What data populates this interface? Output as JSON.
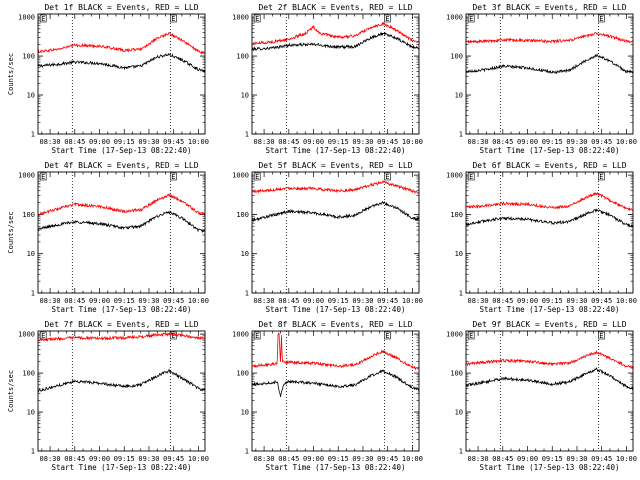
{
  "chart_data": [
    {
      "type": "line",
      "title": "Det 1f BLACK = Events, RED = LLD",
      "ylabel": "Counts/sec",
      "xlabel": "Start Time (17-Sep-13 08:22:40)",
      "x_ticks": [
        "08:30",
        "08:45",
        "09:00",
        "09:15",
        "09:30",
        "09:45",
        "10:00"
      ],
      "y_ticks": [
        "1",
        "10",
        "100",
        "1000"
      ],
      "xlim": [
        "08:22:40",
        "10:04:00"
      ],
      "ylim": [
        1,
        1200
      ],
      "y_scale": "log",
      "event_marks": [
        "08:43:30",
        "09:43:00"
      ],
      "flag_labels": [
        {
          "text": "E",
          "x": "08:24:00"
        },
        {
          "text": "E",
          "x": "09:43:00"
        }
      ],
      "series": [
        {
          "color": "#000000",
          "x": [
            "08:22:40",
            "08:35",
            "08:45",
            "09:00",
            "09:15",
            "09:25",
            "09:35",
            "09:42",
            "09:50",
            "10:00",
            "10:04"
          ],
          "values": [
            55,
            62,
            70,
            65,
            50,
            55,
            95,
            110,
            80,
            45,
            40
          ]
        },
        {
          "color": "#ff0000",
          "x": [
            "08:22:40",
            "08:35",
            "08:45",
            "09:00",
            "09:15",
            "09:25",
            "09:35",
            "09:42",
            "09:50",
            "10:00",
            "10:04"
          ],
          "values": [
            130,
            150,
            190,
            180,
            140,
            150,
            280,
            380,
            260,
            130,
            120
          ]
        }
      ]
    },
    {
      "type": "line",
      "title": "Det 2f BLACK = Events, RED = LLD",
      "ylabel": "",
      "xlabel": "Start Time (17-Sep-13 08:22:40)",
      "x_ticks": [
        "08:30",
        "08:45",
        "09:00",
        "09:15",
        "09:30",
        "09:45",
        "10:00"
      ],
      "y_ticks": [
        "1",
        "10",
        "100",
        "1000"
      ],
      "xlim": [
        "08:22:40",
        "10:04:00"
      ],
      "ylim": [
        1,
        1200
      ],
      "y_scale": "log",
      "event_marks": [
        "08:43:30",
        "09:43:00",
        "10:00:00"
      ],
      "flag_labels": [
        {
          "text": "E",
          "x": "08:24:00"
        },
        {
          "text": "E",
          "x": "09:43:00"
        }
      ],
      "series": [
        {
          "color": "#000000",
          "x": [
            "08:22:40",
            "08:35",
            "08:45",
            "09:00",
            "09:15",
            "09:25",
            "09:35",
            "09:42",
            "09:50",
            "10:00",
            "10:04"
          ],
          "values": [
            150,
            160,
            190,
            200,
            170,
            175,
            300,
            380,
            290,
            170,
            160
          ]
        },
        {
          "color": "#ff0000",
          "x": [
            "08:22:40",
            "08:35",
            "08:45",
            "08:55",
            "09:00",
            "09:04",
            "09:15",
            "09:25",
            "09:35",
            "09:42",
            "09:50",
            "10:00",
            "10:04"
          ],
          "values": [
            210,
            230,
            270,
            380,
            560,
            380,
            300,
            330,
            550,
            680,
            470,
            250,
            230
          ]
        }
      ]
    },
    {
      "type": "line",
      "title": "Det 3f BLACK = Events, RED = LLD",
      "ylabel": "",
      "xlabel": "Start Time (17-Sep-13 08:22:40)",
      "x_ticks": [
        "08:30",
        "08:45",
        "09:00",
        "09:15",
        "09:30",
        "09:45",
        "10:00"
      ],
      "y_ticks": [
        "1",
        "10",
        "100",
        "1000"
      ],
      "xlim": [
        "08:22:40",
        "10:04:00"
      ],
      "ylim": [
        1,
        1200
      ],
      "y_scale": "log",
      "event_marks": [
        "08:43:30",
        "09:43:00"
      ],
      "flag_labels": [
        {
          "text": "E",
          "x": "08:24:00"
        },
        {
          "text": "E",
          "x": "09:43:00"
        }
      ],
      "series": [
        {
          "color": "#000000",
          "x": [
            "08:22:40",
            "08:35",
            "08:45",
            "09:00",
            "09:15",
            "09:25",
            "09:35",
            "09:42",
            "09:50",
            "10:00",
            "10:04"
          ],
          "values": [
            40,
            45,
            55,
            50,
            38,
            42,
            75,
            105,
            75,
            40,
            38
          ]
        },
        {
          "color": "#ff0000",
          "x": [
            "08:22:40",
            "08:35",
            "08:45",
            "09:00",
            "09:15",
            "09:25",
            "09:35",
            "09:42",
            "09:50",
            "10:00",
            "10:04"
          ],
          "values": [
            230,
            240,
            260,
            250,
            240,
            250,
            320,
            390,
            320,
            240,
            230
          ]
        }
      ]
    },
    {
      "type": "line",
      "title": "Det 4f BLACK = Events, RED = LLD",
      "ylabel": "Counts/sec",
      "xlabel": "Start Time (17-Sep-13 08:22:40)",
      "x_ticks": [
        "08:30",
        "08:45",
        "09:00",
        "09:15",
        "09:30",
        "09:45",
        "10:00"
      ],
      "y_ticks": [
        "1",
        "10",
        "100",
        "1000"
      ],
      "xlim": [
        "08:22:40",
        "10:04:00"
      ],
      "ylim": [
        1,
        1200
      ],
      "y_scale": "log",
      "event_marks": [
        "08:43:30",
        "09:43:00"
      ],
      "flag_labels": [
        {
          "text": "E",
          "x": "08:24:00"
        },
        {
          "text": "E",
          "x": "09:43:00"
        }
      ],
      "series": [
        {
          "color": "#000000",
          "x": [
            "08:22:40",
            "08:35",
            "08:45",
            "09:00",
            "09:15",
            "09:25",
            "09:35",
            "09:42",
            "09:50",
            "10:00",
            "10:04"
          ],
          "values": [
            42,
            55,
            65,
            58,
            45,
            50,
            90,
            115,
            80,
            40,
            38
          ]
        },
        {
          "color": "#ff0000",
          "x": [
            "08:22:40",
            "08:35",
            "08:45",
            "09:00",
            "09:15",
            "09:25",
            "09:35",
            "09:42",
            "09:50",
            "10:00",
            "10:04"
          ],
          "values": [
            100,
            140,
            180,
            160,
            120,
            130,
            230,
            310,
            220,
            110,
            100
          ]
        }
      ]
    },
    {
      "type": "line",
      "title": "Det 5f BLACK = Events, RED = LLD",
      "ylabel": "",
      "xlabel": "Start Time (17-Sep-13 08:22:40)",
      "x_ticks": [
        "08:30",
        "08:45",
        "09:00",
        "09:15",
        "09:30",
        "09:45",
        "10:00"
      ],
      "y_ticks": [
        "1",
        "10",
        "100",
        "1000"
      ],
      "xlim": [
        "08:22:40",
        "10:04:00"
      ],
      "ylim": [
        1,
        1200
      ],
      "y_scale": "log",
      "event_marks": [
        "08:43:30",
        "09:43:00"
      ],
      "flag_labels": [
        {
          "text": "E",
          "x": "08:24:00"
        },
        {
          "text": "E",
          "x": "09:43:00"
        }
      ],
      "series": [
        {
          "color": "#000000",
          "x": [
            "08:22:40",
            "08:35",
            "08:45",
            "09:00",
            "09:15",
            "09:25",
            "09:35",
            "09:42",
            "09:50",
            "10:00",
            "10:04"
          ],
          "values": [
            70,
            95,
            120,
            110,
            85,
            95,
            160,
            200,
            150,
            80,
            75
          ]
        },
        {
          "color": "#ff0000",
          "x": [
            "08:22:40",
            "08:35",
            "08:45",
            "09:00",
            "09:15",
            "09:25",
            "09:35",
            "09:42",
            "09:50",
            "10:00",
            "10:04"
          ],
          "values": [
            380,
            420,
            470,
            450,
            400,
            420,
            560,
            660,
            540,
            390,
            370
          ]
        }
      ]
    },
    {
      "type": "line",
      "title": "Det 6f BLACK = Events, RED = LLD",
      "ylabel": "",
      "xlabel": "Start Time (17-Sep-13 08:22:40)",
      "x_ticks": [
        "08:30",
        "08:45",
        "09:00",
        "09:15",
        "09:30",
        "09:45",
        "10:00"
      ],
      "y_ticks": [
        "1",
        "10",
        "100",
        "1000"
      ],
      "xlim": [
        "08:22:40",
        "10:04:00"
      ],
      "ylim": [
        1,
        1200
      ],
      "y_scale": "log",
      "event_marks": [
        "08:43:30",
        "09:43:00"
      ],
      "flag_labels": [
        {
          "text": "E",
          "x": "08:24:00"
        },
        {
          "text": "E",
          "x": "09:43:00"
        }
      ],
      "series": [
        {
          "color": "#000000",
          "x": [
            "08:22:40",
            "08:35",
            "08:45",
            "09:00",
            "09:15",
            "09:25",
            "09:35",
            "09:42",
            "09:50",
            "10:00",
            "10:04"
          ],
          "values": [
            55,
            70,
            80,
            75,
            60,
            65,
            100,
            130,
            95,
            55,
            50
          ]
        },
        {
          "color": "#ff0000",
          "x": [
            "08:22:40",
            "08:35",
            "08:45",
            "09:00",
            "09:15",
            "09:25",
            "09:35",
            "09:42",
            "09:50",
            "10:00",
            "10:04"
          ],
          "values": [
            150,
            170,
            190,
            180,
            150,
            160,
            260,
            350,
            230,
            140,
            130
          ]
        }
      ]
    },
    {
      "type": "line",
      "title": "Det 7f BLACK = Events, RED = LLD",
      "ylabel": "Counts/sec",
      "xlabel": "Start Time (17-Sep-13 08:22:40)",
      "x_ticks": [
        "08:30",
        "08:45",
        "09:00",
        "09:15",
        "09:30",
        "09:45",
        "10:00"
      ],
      "y_ticks": [
        "1",
        "10",
        "100",
        "1000"
      ],
      "xlim": [
        "08:22:40",
        "10:04:00"
      ],
      "ylim": [
        1,
        1200
      ],
      "y_scale": "log",
      "event_marks": [
        "08:43:30",
        "09:43:00"
      ],
      "flag_labels": [
        {
          "text": "E",
          "x": "08:24:00"
        },
        {
          "text": "E",
          "x": "09:43:00"
        }
      ],
      "series": [
        {
          "color": "#000000",
          "x": [
            "08:22:40",
            "08:35",
            "08:45",
            "09:00",
            "09:15",
            "09:25",
            "09:35",
            "09:42",
            "09:50",
            "10:00",
            "10:04"
          ],
          "values": [
            35,
            48,
            62,
            55,
            45,
            50,
            85,
            115,
            75,
            40,
            36
          ]
        },
        {
          "color": "#ff0000",
          "x": [
            "08:22:40",
            "08:35",
            "08:45",
            "09:00",
            "09:15",
            "09:25",
            "09:35",
            "09:42",
            "09:50",
            "10:00",
            "10:04"
          ],
          "values": [
            720,
            760,
            800,
            780,
            800,
            850,
            950,
            1000,
            930,
            800,
            780
          ]
        }
      ]
    },
    {
      "type": "line",
      "title": "Det 8f BLACK = Events, RED = LLD",
      "ylabel": "",
      "xlabel": "Start Time (17-Sep-13 08:22:40)",
      "x_ticks": [
        "08:30",
        "08:45",
        "09:00",
        "09:15",
        "09:30",
        "09:45",
        "10:00"
      ],
      "y_ticks": [
        "1",
        "10",
        "100",
        "1000"
      ],
      "xlim": [
        "08:22:40",
        "10:04:00"
      ],
      "ylim": [
        1,
        1200
      ],
      "y_scale": "log",
      "event_marks": [
        "08:43:30",
        "09:43:00",
        "10:00:00"
      ],
      "flag_labels": [
        {
          "text": "E",
          "x": "08:24:00"
        },
        {
          "text": "E",
          "x": "09:43:00"
        }
      ],
      "series": [
        {
          "color": "#000000",
          "x": [
            "08:22:40",
            "08:35",
            "08:38",
            "08:40",
            "08:42",
            "08:45",
            "09:00",
            "09:15",
            "09:25",
            "09:35",
            "09:42",
            "09:50",
            "10:00",
            "10:04"
          ],
          "values": [
            50,
            58,
            60,
            25,
            55,
            60,
            55,
            45,
            50,
            85,
            115,
            80,
            42,
            38
          ]
        },
        {
          "color": "#ff0000",
          "x": [
            "08:22:40",
            "08:35",
            "08:38",
            "08:38:30",
            "08:39",
            "08:40",
            "08:40:30",
            "08:41",
            "08:45",
            "09:00",
            "09:15",
            "09:25",
            "09:35",
            "09:42",
            "09:50",
            "10:00",
            "10:04"
          ],
          "values": [
            150,
            170,
            180,
            1100,
            1100,
            180,
            1100,
            200,
            190,
            180,
            150,
            160,
            270,
            360,
            250,
            140,
            130
          ]
        }
      ]
    },
    {
      "type": "line",
      "title": "Det 9f BLACK = Events, RED = LLD",
      "ylabel": "",
      "xlabel": "Start Time (17-Sep-13 08:22:40)",
      "x_ticks": [
        "08:30",
        "08:45",
        "09:00",
        "09:15",
        "09:30",
        "09:45",
        "10:00"
      ],
      "y_ticks": [
        "1",
        "10",
        "100",
        "1000"
      ],
      "xlim": [
        "08:22:40",
        "10:04:00"
      ],
      "ylim": [
        1,
        1200
      ],
      "y_scale": "log",
      "event_marks": [
        "08:43:30",
        "09:43:00"
      ],
      "flag_labels": [
        {
          "text": "E",
          "x": "08:24:00"
        },
        {
          "text": "E",
          "x": "09:43:00"
        }
      ],
      "series": [
        {
          "color": "#000000",
          "x": [
            "08:22:40",
            "08:35",
            "08:45",
            "09:00",
            "09:15",
            "09:25",
            "09:35",
            "09:42",
            "09:50",
            "10:00",
            "10:04"
          ],
          "values": [
            48,
            60,
            72,
            66,
            52,
            58,
            95,
            125,
            85,
            45,
            40
          ]
        },
        {
          "color": "#ff0000",
          "x": [
            "08:22:40",
            "08:35",
            "08:45",
            "09:00",
            "09:15",
            "09:25",
            "09:35",
            "09:42",
            "09:50",
            "10:00",
            "10:04"
          ],
          "values": [
            170,
            190,
            210,
            200,
            170,
            180,
            270,
            340,
            240,
            150,
            140
          ]
        }
      ]
    }
  ]
}
